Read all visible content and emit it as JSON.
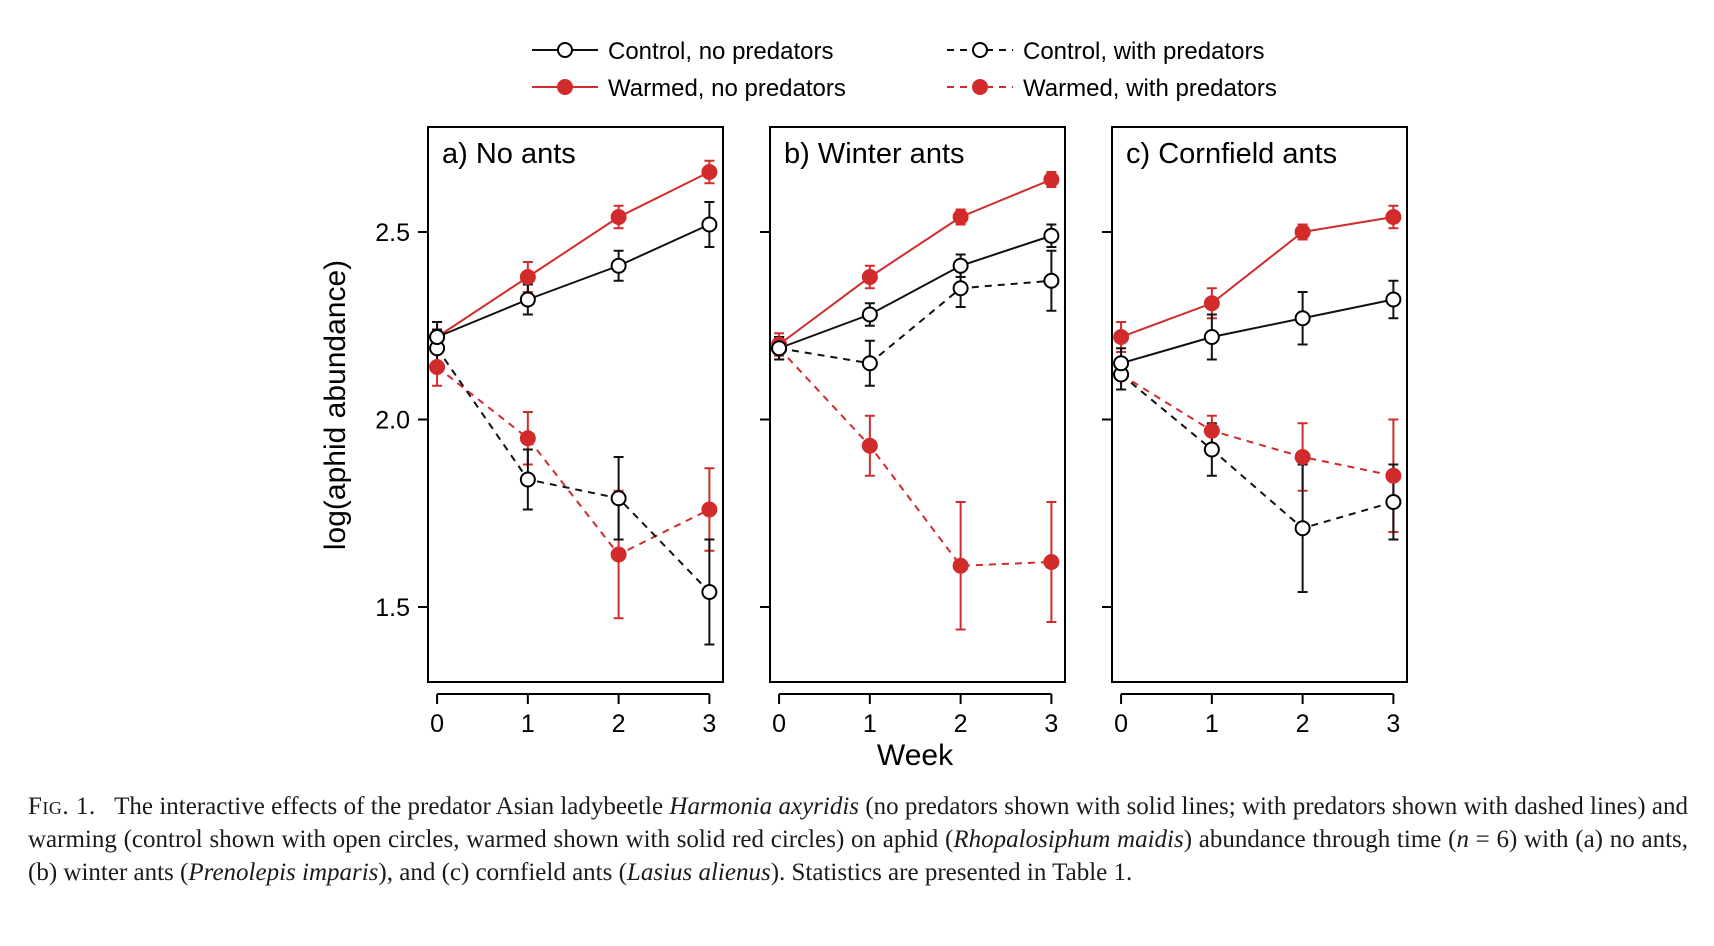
{
  "chart_data": {
    "type": "line",
    "x": [
      0,
      1,
      2,
      3
    ],
    "xlabel": "Week",
    "ylabel": "log(aphid abundance)",
    "ylim": [
      1.3,
      2.78
    ],
    "xlim": [
      -0.1,
      3.15
    ],
    "yticks": [
      1.5,
      2.0,
      2.5
    ],
    "ytick_labels": [
      "1.5",
      "2.0",
      "2.5"
    ],
    "xtick_labels": [
      "0",
      "1",
      "2",
      "3"
    ],
    "legend": {
      "placement": "top",
      "entries": [
        "Control, no predators",
        "Control, with predators",
        "Warmed, no predators",
        "Warmed, with predators"
      ]
    },
    "colors": {
      "control": "#111111",
      "warmed": "#d22b2b"
    },
    "panels": [
      {
        "title": "a) No ants",
        "series": [
          {
            "name": "Control, no predators",
            "style": "solid-open",
            "y": [
              2.22,
              2.32,
              2.41,
              2.52
            ],
            "err": [
              0.04,
              0.04,
              0.04,
              0.06
            ]
          },
          {
            "name": "Warmed, no predators",
            "style": "solid-filled",
            "y": [
              2.22,
              2.38,
              2.54,
              2.66
            ],
            "err": [
              0.04,
              0.04,
              0.03,
              0.03
            ]
          },
          {
            "name": "Control, with predators",
            "style": "dashed-open",
            "y": [
              2.19,
              1.84,
              1.79,
              1.54
            ],
            "err": [
              0.05,
              0.08,
              0.11,
              0.14
            ]
          },
          {
            "name": "Warmed, with predators",
            "style": "dashed-filled",
            "y": [
              2.14,
              1.95,
              1.64,
              1.76
            ],
            "err": [
              0.05,
              0.07,
              0.17,
              0.11
            ]
          }
        ]
      },
      {
        "title": "b) Winter ants",
        "series": [
          {
            "name": "Control, no predators",
            "style": "solid-open",
            "y": [
              2.19,
              2.28,
              2.41,
              2.49
            ],
            "err": [
              0.03,
              0.03,
              0.03,
              0.03
            ]
          },
          {
            "name": "Warmed, no predators",
            "style": "solid-filled",
            "y": [
              2.2,
              2.38,
              2.54,
              2.64
            ],
            "err": [
              0.03,
              0.03,
              0.02,
              0.02
            ]
          },
          {
            "name": "Control, with predators",
            "style": "dashed-open",
            "y": [
              2.19,
              2.15,
              2.35,
              2.37
            ],
            "err": [
              0.03,
              0.06,
              0.05,
              0.08
            ]
          },
          {
            "name": "Warmed, with predators",
            "style": "dashed-filled",
            "y": [
              2.19,
              1.93,
              1.61,
              1.62
            ],
            "err": [
              0.03,
              0.08,
              0.17,
              0.16
            ]
          }
        ]
      },
      {
        "title": "c) Cornfield ants",
        "series": [
          {
            "name": "Control, no predators",
            "style": "solid-open",
            "y": [
              2.15,
              2.22,
              2.27,
              2.32
            ],
            "err": [
              0.04,
              0.06,
              0.07,
              0.05
            ]
          },
          {
            "name": "Warmed, no predators",
            "style": "solid-filled",
            "y": [
              2.22,
              2.31,
              2.5,
              2.54
            ],
            "err": [
              0.04,
              0.04,
              0.02,
              0.03
            ]
          },
          {
            "name": "Control, with predators",
            "style": "dashed-open",
            "y": [
              2.12,
              1.92,
              1.71,
              1.78
            ],
            "err": [
              0.04,
              0.07,
              0.17,
              0.1
            ]
          },
          {
            "name": "Warmed, with predators",
            "style": "dashed-filled",
            "y": [
              2.12,
              1.97,
              1.9,
              1.85
            ],
            "err": [
              0.04,
              0.04,
              0.09,
              0.15
            ]
          }
        ]
      }
    ]
  },
  "caption": {
    "label": "Fig. 1.",
    "p1": "The interactive effects of the predator Asian ladybeetle ",
    "i1": "Harmonia axyridis",
    "p2": " (no predators shown with solid lines; with predators shown with dashed lines) and warming (control shown with open circles, warmed shown with solid red circles) on aphid (",
    "i2": "Rhopalosiphum maidis",
    "p3": ") abundance through time (",
    "i3": "n",
    "p4": " = 6) with (a) no ants, (b) winter ants (",
    "i4": "Prenolepis imparis",
    "p5": "), and (c) cornfield ants (",
    "i5": "Lasius alienus",
    "p6": "). Statistics are presented in Table 1."
  }
}
